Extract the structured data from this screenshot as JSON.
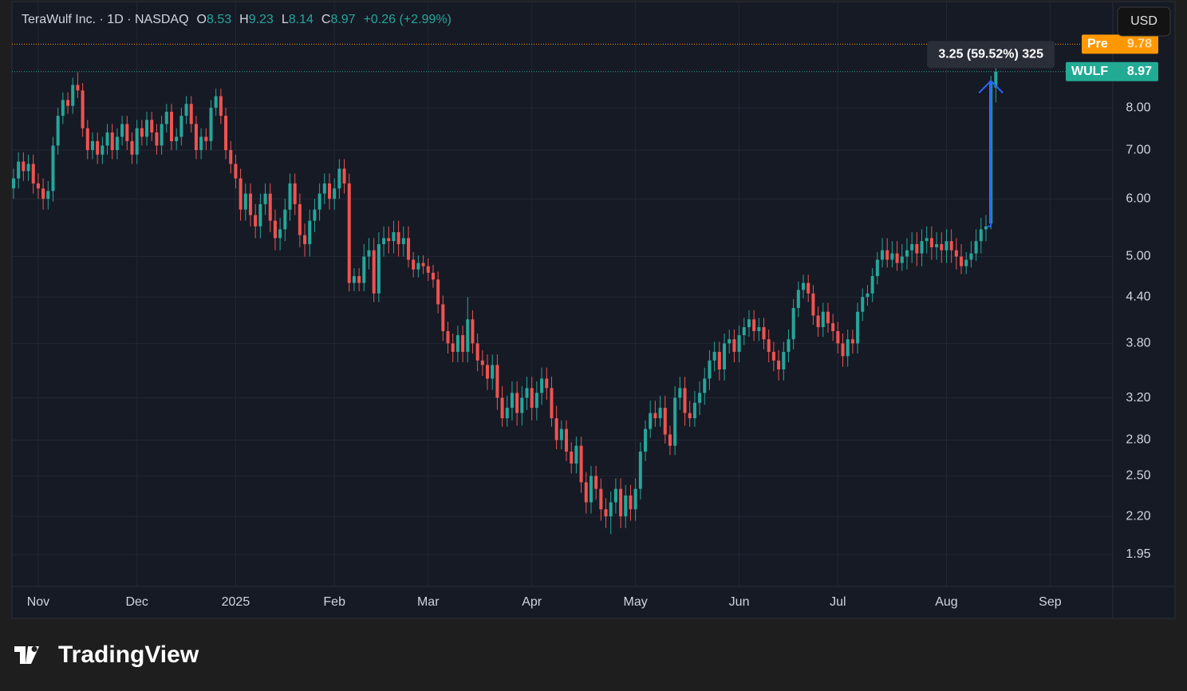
{
  "chart_data": {
    "type": "candlestick",
    "title": "TeraWulf Inc. · 1D · NASDAQ",
    "ohlc_letters": [
      "O",
      "H",
      "L",
      "C"
    ],
    "change": "+0.26 (+2.99%)",
    "currency": "USD",
    "symbol": "WULF",
    "premarket": {
      "label": "Pre",
      "value": 9.78
    },
    "measure_label": "3.25 (59.52%) 325",
    "up_color": "#26a69a",
    "down_color": "#ef5350",
    "log_scale": true,
    "grid": true,
    "xlim": [
      -0.32,
      222.7
    ],
    "ylim": [
      1.763,
      11.19
    ],
    "yticks": [
      {
        "value": 1.95,
        "label": "1.95"
      },
      {
        "value": 2.2,
        "label": "2.20"
      },
      {
        "value": 2.5,
        "label": "2.50"
      },
      {
        "value": 2.8,
        "label": "2.80"
      },
      {
        "value": 3.2,
        "label": "3.20"
      },
      {
        "value": 3.8,
        "label": "3.80"
      },
      {
        "value": 4.4,
        "label": "4.40"
      },
      {
        "value": 5,
        "label": "5.00"
      },
      {
        "value": 6,
        "label": "6.00"
      },
      {
        "value": 7,
        "label": "7.00"
      },
      {
        "value": 8,
        "label": "8.00"
      }
    ],
    "xticks": [
      {
        "value": 5,
        "label": "Nov"
      },
      {
        "value": 25,
        "label": "Dec"
      },
      {
        "value": 45,
        "label": "2025"
      },
      {
        "value": 65,
        "label": "Feb"
      },
      {
        "value": 84,
        "label": "Mar"
      },
      {
        "value": 105,
        "label": "Apr"
      },
      {
        "value": 126,
        "label": "May"
      },
      {
        "value": 147,
        "label": "Jun"
      },
      {
        "value": 167,
        "label": "Jul"
      },
      {
        "value": 189,
        "label": "Aug"
      },
      {
        "value": 210,
        "label": "Sep"
      }
    ],
    "open": [
      6.2,
      6.4,
      6.75,
      6.55,
      6.7,
      6.3,
      6.2,
      6.0,
      6.15,
      7.1,
      7.8,
      8.2,
      8.05,
      8.6,
      8.45,
      7.5,
      7.0,
      7.2,
      6.9,
      7.1,
      7.4,
      7.0,
      7.3,
      7.6,
      7.2,
      6.9,
      7.5,
      7.3,
      7.7,
      7.4,
      7.1,
      7.6,
      7.9,
      7.2,
      7.3,
      7.8,
      8.1,
      7.6,
      7.0,
      7.3,
      7.2,
      8.0,
      8.3,
      7.8,
      7.0,
      6.7,
      6.4,
      5.8,
      6.1,
      5.7,
      5.5,
      5.9,
      6.1,
      5.6,
      5.3,
      5.45,
      5.8,
      6.3,
      5.9,
      5.35,
      5.2,
      5.6,
      5.8,
      6.1,
      6.3,
      6.0,
      6.2,
      6.6,
      6.3,
      4.6,
      4.7,
      4.6,
      5.0,
      5.1,
      4.45,
      5.2,
      5.3,
      5.25,
      5.4,
      5.2,
      5.3,
      4.95,
      4.8,
      4.9,
      4.85,
      4.75,
      4.65,
      4.3,
      3.95,
      3.8,
      3.7,
      3.9,
      3.7,
      4.1,
      3.8,
      3.6,
      3.55,
      3.4,
      3.55,
      3.2,
      3.0,
      3.1,
      3.25,
      3.05,
      3.2,
      3.3,
      3.1,
      3.25,
      3.4,
      3.3,
      3.0,
      2.8,
      2.9,
      2.7,
      2.6,
      2.75,
      2.45,
      2.3,
      2.5,
      2.4,
      2.25,
      2.2,
      2.3,
      2.4,
      2.2,
      2.35,
      2.25,
      2.4,
      2.7,
      2.9,
      3.05,
      3.0,
      3.1,
      2.85,
      2.75,
      3.2,
      3.3,
      3.05,
      3.0,
      3.15,
      3.25,
      3.4,
      3.6,
      3.7,
      3.5,
      3.8,
      3.85,
      3.7,
      3.9,
      4.0,
      4.1,
      3.95,
      4.0,
      3.85,
      3.7,
      3.6,
      3.5,
      3.7,
      3.85,
      4.25,
      4.5,
      4.6,
      4.45,
      4.15,
      4.0,
      4.2,
      4.05,
      3.95,
      3.8,
      3.65,
      3.85,
      3.8,
      4.2,
      4.4,
      4.45,
      4.7,
      4.95,
      5.1,
      4.95,
      5.05,
      4.9,
      5.0,
      5.1,
      5.2,
      5.05,
      5.25,
      5.3,
      5.15,
      5.2,
      5.1,
      5.25,
      5.1,
      5.0,
      4.85,
      4.95,
      5.05,
      5.25,
      5.45,
      5.55,
      8.53
    ],
    "high": [
      6.6,
      6.95,
      6.95,
      6.9,
      6.9,
      6.5,
      6.4,
      6.35,
      7.3,
      8.0,
      8.4,
      8.4,
      8.8,
      8.95,
      8.65,
      7.7,
      7.4,
      7.4,
      7.3,
      7.6,
      7.6,
      7.5,
      7.8,
      7.8,
      7.4,
      7.7,
      7.7,
      7.9,
      7.9,
      7.6,
      7.8,
      8.1,
      8.1,
      7.5,
      8.0,
      8.3,
      8.3,
      7.8,
      7.5,
      7.5,
      8.2,
      8.5,
      8.5,
      8.0,
      7.2,
      6.9,
      6.6,
      6.3,
      6.3,
      5.9,
      6.1,
      6.3,
      6.3,
      5.8,
      5.65,
      6.0,
      6.5,
      6.5,
      6.1,
      5.55,
      5.8,
      6.0,
      6.3,
      6.5,
      6.5,
      6.4,
      6.8,
      6.8,
      6.5,
      4.82,
      4.82,
      5.2,
      5.3,
      5.3,
      5.4,
      5.5,
      5.5,
      5.6,
      5.6,
      5.5,
      5.5,
      5.07,
      5.02,
      5.02,
      4.97,
      4.87,
      4.77,
      4.42,
      4.07,
      3.92,
      4.02,
      4.02,
      4.4,
      4.22,
      3.92,
      3.72,
      3.67,
      3.67,
      3.67,
      3.32,
      3.22,
      3.37,
      3.37,
      3.32,
      3.42,
      3.42,
      3.37,
      3.52,
      3.52,
      3.42,
      3.12,
      2.98,
      2.98,
      2.78,
      2.83,
      2.83,
      2.53,
      2.58,
      2.58,
      2.48,
      2.33,
      2.38,
      2.48,
      2.48,
      2.43,
      2.43,
      2.48,
      2.78,
      2.98,
      3.17,
      3.17,
      3.22,
      3.22,
      2.93,
      3.32,
      3.42,
      3.42,
      3.17,
      3.27,
      3.37,
      3.52,
      3.72,
      3.82,
      3.82,
      3.92,
      3.97,
      3.97,
      4.02,
      4.12,
      4.22,
      4.22,
      4.12,
      4.12,
      3.97,
      3.82,
      3.72,
      3.82,
      3.97,
      4.37,
      4.62,
      4.72,
      4.72,
      4.57,
      4.27,
      4.32,
      4.32,
      4.17,
      4.07,
      3.92,
      3.97,
      3.97,
      4.32,
      4.52,
      4.57,
      4.82,
      5.07,
      5.3,
      5.3,
      5.25,
      5.25,
      5.2,
      5.3,
      5.4,
      5.4,
      5.45,
      5.5,
      5.5,
      5.4,
      5.4,
      5.45,
      5.45,
      5.3,
      5.2,
      5.07,
      5.25,
      5.45,
      5.65,
      5.7,
      8.85,
      9.23
    ],
    "low": [
      6.0,
      6.2,
      6.35,
      6.35,
      6.1,
      6.0,
      5.8,
      5.8,
      5.95,
      6.9,
      7.6,
      7.85,
      7.85,
      8.25,
      7.3,
      6.8,
      6.8,
      6.7,
      6.7,
      6.9,
      6.8,
      6.8,
      7.1,
      7.0,
      6.7,
      6.7,
      7.1,
      7.1,
      7.2,
      6.9,
      6.9,
      7.4,
      7.0,
      7.0,
      7.1,
      7.6,
      7.4,
      6.8,
      6.8,
      7.0,
      7.0,
      7.8,
      7.6,
      6.8,
      6.5,
      6.2,
      5.6,
      5.6,
      5.5,
      5.3,
      5.3,
      5.7,
      5.4,
      5.1,
      5.1,
      5.25,
      5.6,
      5.7,
      5.15,
      5.0,
      5.0,
      5.4,
      5.6,
      5.9,
      5.8,
      5.8,
      6.0,
      6.1,
      4.48,
      4.48,
      4.48,
      4.48,
      4.8,
      4.33,
      4.33,
      5.0,
      5.05,
      5.05,
      5.0,
      5.0,
      4.83,
      4.68,
      4.68,
      4.73,
      4.63,
      4.53,
      4.18,
      3.83,
      3.68,
      3.58,
      3.58,
      3.58,
      3.58,
      3.68,
      3.48,
      3.43,
      3.28,
      3.28,
      3.08,
      2.92,
      2.92,
      2.98,
      2.93,
      2.93,
      3.08,
      2.98,
      2.98,
      3.13,
      3.18,
      2.92,
      2.72,
      2.72,
      2.62,
      2.52,
      2.52,
      2.37,
      2.22,
      2.22,
      2.32,
      2.17,
      2.12,
      2.08,
      2.22,
      2.12,
      2.12,
      2.17,
      2.17,
      2.32,
      2.62,
      2.82,
      2.92,
      2.92,
      2.77,
      2.67,
      2.67,
      3.08,
      2.93,
      2.92,
      2.92,
      3.03,
      3.13,
      3.28,
      3.48,
      3.38,
      3.38,
      3.68,
      3.58,
      3.58,
      3.78,
      3.88,
      3.83,
      3.83,
      3.73,
      3.58,
      3.48,
      3.38,
      3.38,
      3.58,
      3.73,
      4.13,
      4.38,
      4.33,
      4.03,
      3.88,
      3.88,
      3.93,
      3.83,
      3.68,
      3.53,
      3.53,
      3.68,
      3.68,
      4.08,
      4.28,
      4.33,
      4.58,
      4.83,
      4.83,
      4.83,
      4.78,
      4.78,
      4.8,
      4.9,
      4.85,
      4.85,
      5.05,
      4.95,
      4.95,
      4.9,
      4.9,
      4.9,
      4.8,
      4.73,
      4.73,
      4.83,
      4.93,
      5.05,
      5.25,
      5.45,
      8.14
    ],
    "close": [
      6.4,
      6.75,
      6.55,
      6.7,
      6.3,
      6.2,
      6.0,
      6.15,
      7.1,
      7.8,
      8.2,
      8.05,
      8.6,
      8.45,
      7.5,
      7.0,
      7.2,
      6.9,
      7.1,
      7.4,
      7.0,
      7.3,
      7.6,
      7.2,
      6.9,
      7.5,
      7.3,
      7.7,
      7.4,
      7.1,
      7.6,
      7.9,
      7.2,
      7.3,
      7.8,
      8.1,
      7.6,
      7.0,
      7.3,
      7.2,
      8.0,
      8.3,
      7.8,
      7.0,
      6.7,
      6.4,
      5.8,
      6.1,
      5.7,
      5.5,
      5.9,
      6.1,
      5.6,
      5.3,
      5.45,
      5.8,
      6.3,
      5.9,
      5.35,
      5.2,
      5.6,
      5.8,
      6.1,
      6.3,
      6.0,
      6.2,
      6.6,
      6.3,
      4.6,
      4.7,
      4.6,
      5.0,
      5.1,
      4.45,
      5.2,
      5.3,
      5.25,
      5.4,
      5.2,
      5.3,
      4.95,
      4.8,
      4.9,
      4.85,
      4.75,
      4.65,
      4.3,
      3.95,
      3.8,
      3.7,
      3.9,
      3.7,
      4.1,
      3.8,
      3.6,
      3.55,
      3.4,
      3.55,
      3.2,
      3.0,
      3.1,
      3.25,
      3.05,
      3.2,
      3.3,
      3.1,
      3.25,
      3.4,
      3.3,
      3.0,
      2.8,
      2.9,
      2.7,
      2.6,
      2.75,
      2.45,
      2.3,
      2.5,
      2.4,
      2.25,
      2.2,
      2.3,
      2.4,
      2.2,
      2.35,
      2.25,
      2.4,
      2.7,
      2.9,
      3.05,
      3.0,
      3.1,
      2.85,
      2.75,
      3.2,
      3.3,
      3.05,
      3.0,
      3.15,
      3.25,
      3.4,
      3.6,
      3.7,
      3.5,
      3.8,
      3.85,
      3.7,
      3.9,
      4.0,
      4.1,
      3.95,
      4.0,
      3.85,
      3.7,
      3.6,
      3.5,
      3.7,
      3.85,
      4.25,
      4.5,
      4.6,
      4.45,
      4.15,
      4.0,
      4.2,
      4.05,
      3.95,
      3.8,
      3.65,
      3.85,
      3.8,
      4.2,
      4.4,
      4.45,
      4.7,
      4.95,
      5.1,
      4.95,
      5.05,
      4.9,
      5.0,
      5.1,
      5.2,
      5.05,
      5.25,
      5.3,
      5.15,
      5.2,
      5.1,
      5.25,
      5.1,
      5.0,
      4.85,
      4.95,
      5.05,
      5.25,
      5.45,
      5.5,
      8.71,
      8.97
    ]
  },
  "branding": "TradingView"
}
